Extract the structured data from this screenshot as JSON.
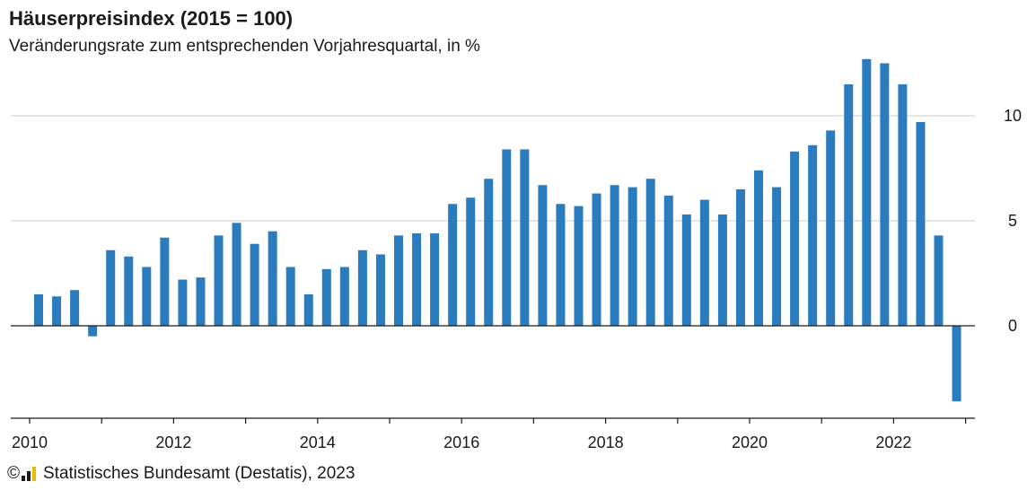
{
  "title": "Häuserpreisindex (2015 = 100)",
  "subtitle": "Veränderungsrate zum entsprechenden Vorjahresquartal, in %",
  "footer": {
    "copyright_symbol": "©",
    "source": "Statistisches Bundesamt (Destatis), 2023",
    "logo_icon": "destatis-logo-icon",
    "logo_colors": [
      "#1a1a1a",
      "#f2b800"
    ]
  },
  "colors": {
    "bar": "#2b7bbf",
    "grid": "#cccccc",
    "axis": "#1a1a1a"
  },
  "chart_data": {
    "type": "bar",
    "title": "Häuserpreisindex (2015 = 100)",
    "subtitle": "Veränderungsrate zum entsprechenden Vorjahresquartal, in %",
    "xlabel": "",
    "ylabel": "",
    "ylim": [
      -4.3,
      12.3
    ],
    "yticks": [
      0,
      5,
      10
    ],
    "xticks": [
      "2010",
      "2012",
      "2014",
      "2016",
      "2018",
      "2020",
      "2022"
    ],
    "y_axis_position": "right",
    "grid": true,
    "categories": [
      "2010 Q1",
      "2010 Q2",
      "2010 Q3",
      "2010 Q4",
      "2011 Q1",
      "2011 Q2",
      "2011 Q3",
      "2011 Q4",
      "2012 Q1",
      "2012 Q2",
      "2012 Q3",
      "2012 Q4",
      "2013 Q1",
      "2013 Q2",
      "2013 Q3",
      "2013 Q4",
      "2014 Q1",
      "2014 Q2",
      "2014 Q3",
      "2014 Q4",
      "2015 Q1",
      "2015 Q2",
      "2015 Q3",
      "2015 Q4",
      "2016 Q1",
      "2016 Q2",
      "2016 Q3",
      "2016 Q4",
      "2017 Q1",
      "2017 Q2",
      "2017 Q3",
      "2017 Q4",
      "2018 Q1",
      "2018 Q2",
      "2018 Q3",
      "2018 Q4",
      "2019 Q1",
      "2019 Q2",
      "2019 Q3",
      "2019 Q4",
      "2020 Q1",
      "2020 Q2",
      "2020 Q3",
      "2020 Q4",
      "2021 Q1",
      "2021 Q2",
      "2021 Q3",
      "2021 Q4",
      "2022 Q1",
      "2022 Q2",
      "2022 Q3",
      "2022 Q4"
    ],
    "values": [
      1.5,
      1.4,
      1.7,
      -0.5,
      3.6,
      3.3,
      2.8,
      4.2,
      2.2,
      2.3,
      4.3,
      4.9,
      3.9,
      4.5,
      2.8,
      1.5,
      2.7,
      2.8,
      3.6,
      3.4,
      4.3,
      4.4,
      4.4,
      5.8,
      6.1,
      7.0,
      8.4,
      8.4,
      6.7,
      5.8,
      5.7,
      6.3,
      6.7,
      6.6,
      7.0,
      6.2,
      5.3,
      6.0,
      5.3,
      6.5,
      7.4,
      6.6,
      8.3,
      8.6,
      9.3,
      11.5,
      12.7,
      12.5,
      11.5,
      9.7,
      4.3,
      -3.6
    ]
  }
}
